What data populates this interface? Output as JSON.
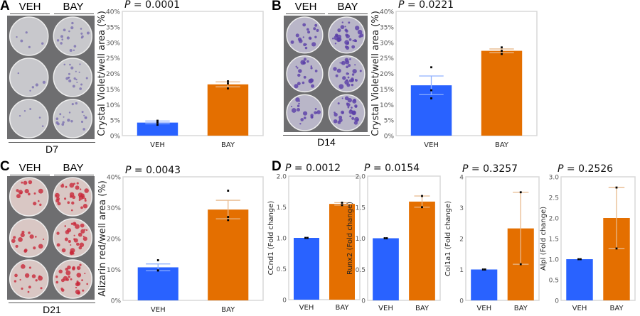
{
  "panels": {
    "A": "A",
    "B": "B",
    "C": "C",
    "D": "D"
  },
  "groups": {
    "veh": "VEH",
    "bay": "BAY"
  },
  "photos": [
    {
      "panel": "A",
      "day": "D7",
      "stain_color": "#7b6fb0",
      "base_color": "#c8c8cc"
    },
    {
      "panel": "B",
      "day": "D14",
      "stain_color": "#5a3fa8",
      "base_color": "#b9b6c8"
    },
    {
      "panel": "C",
      "day": "D21",
      "stain_color": "#c8283a",
      "base_color": "#d9c7c4"
    }
  ],
  "colors": {
    "veh": "#2962ff",
    "bay": "#e46f00",
    "veh_err": "#8fb0ff",
    "bay_err": "#e8b98c"
  },
  "chart_data": [
    {
      "id": "A",
      "type": "bar",
      "p_label": "P",
      "p_value": " = 0.0001",
      "ylabel": "Crystal Violet/well area (%)",
      "ylim": [
        0,
        40
      ],
      "ticks": [
        0,
        5,
        10,
        15,
        20,
        25,
        30,
        35,
        40
      ],
      "tick_suffix": "%",
      "categories": [
        "VEH",
        "BAY"
      ],
      "values": [
        4.2,
        16.5
      ],
      "err_low": [
        3.8,
        15.7
      ],
      "err_high": [
        4.7,
        17.3
      ],
      "points": [
        [
          3.5,
          4.2,
          4.8
        ],
        [
          15.2,
          16.8,
          17.5
        ]
      ]
    },
    {
      "id": "B",
      "type": "bar",
      "p_label": "P",
      "p_value": " = 0.0221",
      "ylabel": "Crystal Violet/well area (%)",
      "ylim": [
        0,
        40
      ],
      "ticks": [
        0,
        5,
        10,
        15,
        20,
        25,
        30,
        35,
        40
      ],
      "tick_suffix": "%",
      "categories": [
        "VEH",
        "BAY"
      ],
      "values": [
        16.2,
        27.3
      ],
      "err_low": [
        13.2,
        26.7
      ],
      "err_high": [
        19.2,
        27.9
      ],
      "points": [
        [
          12,
          14.6,
          22
        ],
        [
          26.3,
          27.3,
          28.4
        ]
      ]
    },
    {
      "id": "C",
      "type": "bar",
      "p_label": "P",
      "p_value": " = 0.0043",
      "ylabel": "Alizarin red/well area (%)",
      "ylim": [
        0,
        40
      ],
      "ticks": [
        0,
        10,
        20,
        30,
        40
      ],
      "tick_suffix": "%",
      "categories": [
        "VEH",
        "BAY"
      ],
      "values": [
        10.7,
        29.4
      ],
      "err_low": [
        9.6,
        26.4
      ],
      "err_high": [
        11.8,
        32.4
      ],
      "points": [
        [
          9.7,
          9.7,
          13
        ],
        [
          26,
          27,
          35.5
        ]
      ]
    },
    {
      "id": "D1",
      "type": "bar",
      "p_label": "P",
      "p_value": " = 0.0012",
      "ylabel": "CCnd1 (Fold change)",
      "ylim": [
        0,
        2
      ],
      "ticks": [
        "0",
        "0.5",
        "1.0",
        "1.5",
        "2.0"
      ],
      "tick_suffix": "",
      "categories": [
        "VEH",
        "BAY"
      ],
      "values": [
        1.0,
        1.55
      ],
      "err_low": [
        1.0,
        1.53
      ],
      "err_high": [
        1.0,
        1.57
      ],
      "points": [
        [
          1.0,
          1.0
        ],
        [
          1.53,
          1.57
        ]
      ]
    },
    {
      "id": "D2",
      "type": "bar",
      "p_label": "P",
      "p_value": " = 0.0154",
      "ylabel": "Runx2 (Fold change)",
      "ylim": [
        0,
        2
      ],
      "ticks": [
        "0",
        "0.5",
        "1.0",
        "1.5",
        "2.0"
      ],
      "tick_suffix": "",
      "categories": [
        "VEH",
        "BAY"
      ],
      "values": [
        1.0,
        1.59
      ],
      "err_low": [
        1.0,
        1.5
      ],
      "err_high": [
        1.0,
        1.68
      ],
      "points": [
        [
          1.0,
          1.0
        ],
        [
          1.5,
          1.68
        ]
      ]
    },
    {
      "id": "D3",
      "type": "bar",
      "p_label": "P",
      "p_value": " = 0.3257",
      "ylabel": "Col1a1 (Fold change)",
      "ylim": [
        0,
        4
      ],
      "ticks": [
        "0",
        "1",
        "2",
        "3",
        "4"
      ],
      "tick_suffix": "",
      "categories": [
        "VEH",
        "BAY"
      ],
      "values": [
        1.0,
        2.33
      ],
      "err_low": [
        1.0,
        1.17
      ],
      "err_high": [
        1.0,
        3.5
      ],
      "points": [
        [
          1.0,
          1.0
        ],
        [
          1.17,
          3.5
        ]
      ]
    },
    {
      "id": "D4",
      "type": "bar",
      "p_label": "P",
      "p_value": " = 0.2526",
      "ylabel": "Alpl (Fold change)",
      "ylim": [
        0,
        3
      ],
      "ticks": [
        "0",
        "0.5",
        "1.0",
        "1.5",
        "2.0",
        "2.5",
        "3.0"
      ],
      "tick_suffix": "",
      "categories": [
        "VEH",
        "BAY"
      ],
      "values": [
        1.0,
        2.0
      ],
      "err_low": [
        1.0,
        1.26
      ],
      "err_high": [
        1.0,
        2.74
      ],
      "points": [
        [
          1.0,
          1.0
        ],
        [
          1.26,
          2.74
        ]
      ]
    }
  ]
}
